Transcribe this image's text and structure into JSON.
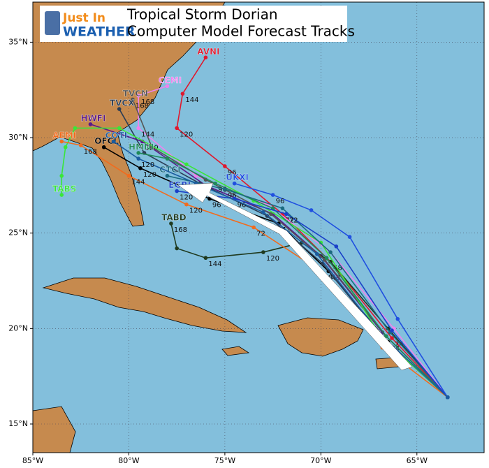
{
  "chart_data": {
    "type": "map",
    "title": "Tropical Storm Dorian",
    "subtitle": "Computer Model Forecast Tracks",
    "logo": {
      "top": "Just In",
      "bottom": "WEATHER"
    },
    "xlim": [
      -85,
      -61.5
    ],
    "ylim": [
      13.5,
      37.1
    ],
    "xticks": [
      {
        "value": -85,
        "label": "85°W"
      },
      {
        "value": -80,
        "label": "80°W"
      },
      {
        "value": -75,
        "label": "75°W"
      },
      {
        "value": -70,
        "label": "70°W"
      },
      {
        "value": -65,
        "label": "65°W"
      }
    ],
    "yticks": [
      {
        "value": 15,
        "label": "15°N"
      },
      {
        "value": 20,
        "label": "20°N"
      },
      {
        "value": 25,
        "label": "25°N"
      },
      {
        "value": 30,
        "label": "30°N"
      },
      {
        "value": 35,
        "label": "35°N"
      }
    ],
    "grid": true,
    "series": [
      {
        "name": "OFCL",
        "color": "#000000",
        "x": [
          -63.4,
          -66.5,
          -69.6,
          -72.2,
          -75.8,
          -79.4,
          -81.3
        ],
        "values": [
          16.4,
          19.3,
          23.0,
          25.5,
          26.8,
          28.4,
          29.5
        ],
        "point_labels": [
          null,
          "24",
          "48",
          "72",
          "96",
          "120",
          null
        ]
      },
      {
        "name": "AVNI",
        "color": "#e0182d",
        "x": [
          -63.4,
          -66.3,
          -69.5,
          -72.0,
          -75.0,
          -77.5,
          -77.2,
          -76.0
        ],
        "values": [
          16.4,
          19.5,
          23.5,
          26.0,
          28.5,
          30.5,
          32.3,
          34.2
        ],
        "point_labels": [
          null,
          "24",
          "48",
          "72",
          "96",
          "120",
          "144",
          null
        ]
      },
      {
        "name": "HWFI",
        "color": "#5a1a8a",
        "x": [
          -63.4,
          -66.8,
          -70.0,
          -72.5,
          -76.0,
          -79.3,
          -82.0
        ],
        "values": [
          16.4,
          19.8,
          23.8,
          26.0,
          27.5,
          29.8,
          30.7
        ],
        "point_labels": [
          null,
          null,
          null,
          null,
          null,
          "120",
          null
        ]
      },
      {
        "name": "TABD",
        "color": "#1f3a1f",
        "x": [
          -63.4,
          -66.5,
          -69.5,
          -71.0,
          -73.0,
          -76.0,
          -77.5,
          -77.8
        ],
        "values": [
          16.4,
          20.0,
          23.5,
          24.5,
          24.0,
          23.7,
          24.2,
          25.5
        ],
        "point_labels": [
          null,
          null,
          null,
          null,
          "120",
          "144",
          null,
          "168"
        ]
      },
      {
        "name": "CEMI",
        "color": "#ee82ee",
        "x": [
          -63.4,
          -66.2,
          -69.5,
          -72.8,
          -76.5,
          -79.5,
          -79.5,
          -78.0
        ],
        "values": [
          16.4,
          20.0,
          24.0,
          26.5,
          28.0,
          30.5,
          32.2,
          32.7
        ],
        "point_labels": [
          null,
          null,
          null,
          null,
          null,
          "144",
          "168",
          null
        ]
      },
      {
        "name": "TVCN",
        "color": "#555555",
        "x": [
          -63.4,
          -66.6,
          -69.8,
          -72.6,
          -76.0,
          -78.8,
          -79.8
        ],
        "values": [
          16.4,
          19.6,
          23.6,
          26.0,
          27.8,
          29.5,
          32.0
        ],
        "point_labels": [
          null,
          null,
          null,
          null,
          null,
          null,
          "168"
        ]
      },
      {
        "name": "TVCX",
        "color": "#2b3d55",
        "x": [
          -63.4,
          -66.7,
          -69.9,
          -72.8,
          -76.3,
          -79.2,
          -80.5
        ],
        "values": [
          16.4,
          19.4,
          23.4,
          25.9,
          27.6,
          29.2,
          31.5
        ],
        "point_labels": [
          null,
          null,
          null,
          null,
          null,
          null,
          null
        ]
      },
      {
        "name": "TABS",
        "color": "#39e639",
        "x": [
          -63.4,
          -66.8,
          -70.0,
          -73.5,
          -77.0,
          -80.5,
          -82.8,
          -83.3,
          -83.5,
          -83.5
        ],
        "values": [
          16.4,
          19.5,
          24.5,
          26.7,
          28.6,
          30.5,
          30.5,
          29.5,
          28.0,
          27.0
        ],
        "point_labels": [
          null,
          null,
          null,
          null,
          null,
          null,
          null,
          null,
          null,
          null
        ]
      },
      {
        "name": "AEMI",
        "color": "#f26b1d",
        "x": [
          -63.4,
          -66.8,
          -70.0,
          -73.5,
          -77.0,
          -80.0,
          -82.5,
          -83.5
        ],
        "values": [
          16.4,
          19.0,
          23.0,
          25.3,
          26.5,
          28.0,
          29.6,
          29.8
        ],
        "point_labels": [
          null,
          null,
          "48",
          "72",
          "120",
          "144",
          "168",
          null
        ]
      },
      {
        "name": "HMNI",
        "color": "#1f8a5a",
        "x": [
          -63.4,
          -66.6,
          -69.7,
          -72.5,
          -75.5,
          -78.0,
          -79.5
        ],
        "values": [
          16.4,
          19.6,
          23.7,
          26.3,
          27.6,
          28.9,
          29.2
        ],
        "point_labels": [
          null,
          null,
          null,
          null,
          "96",
          null,
          null
        ]
      },
      {
        "name": "CTCI",
        "color": "#1b6b80",
        "x": [
          -63.4,
          -66.4,
          -69.5,
          -72.0,
          -75.0,
          -78.0
        ],
        "values": [
          16.4,
          19.8,
          24.0,
          26.3,
          27.3,
          28.0
        ],
        "point_labels": [
          null,
          null,
          null,
          null,
          "96",
          null
        ]
      },
      {
        "name": "EGRI",
        "color": "#1a40c8",
        "x": [
          -63.4,
          -66.3,
          -69.2,
          -71.8,
          -74.5,
          -77.5
        ],
        "values": [
          16.4,
          19.9,
          24.3,
          26.0,
          26.8,
          27.2
        ],
        "point_labels": [
          null,
          null,
          null,
          "72",
          "96",
          "120"
        ]
      },
      {
        "name": "UKXI",
        "color": "#2050e0",
        "x": [
          -63.4,
          -66.0,
          -68.5,
          -70.5,
          -72.5,
          -74.5
        ],
        "values": [
          16.4,
          20.5,
          24.8,
          26.2,
          27.0,
          27.6
        ],
        "point_labels": [
          null,
          null,
          null,
          null,
          "96",
          null
        ]
      },
      {
        "name": "COTI",
        "color": "#1b5ca0",
        "x": [
          -63.4,
          -66.9,
          -70.2,
          -73.0,
          -76.5,
          -79.5,
          -80.8
        ],
        "values": [
          16.4,
          19.7,
          23.9,
          26.1,
          27.6,
          28.9,
          29.8
        ],
        "point_labels": [
          null,
          null,
          null,
          null,
          null,
          "120",
          null
        ]
      }
    ]
  }
}
